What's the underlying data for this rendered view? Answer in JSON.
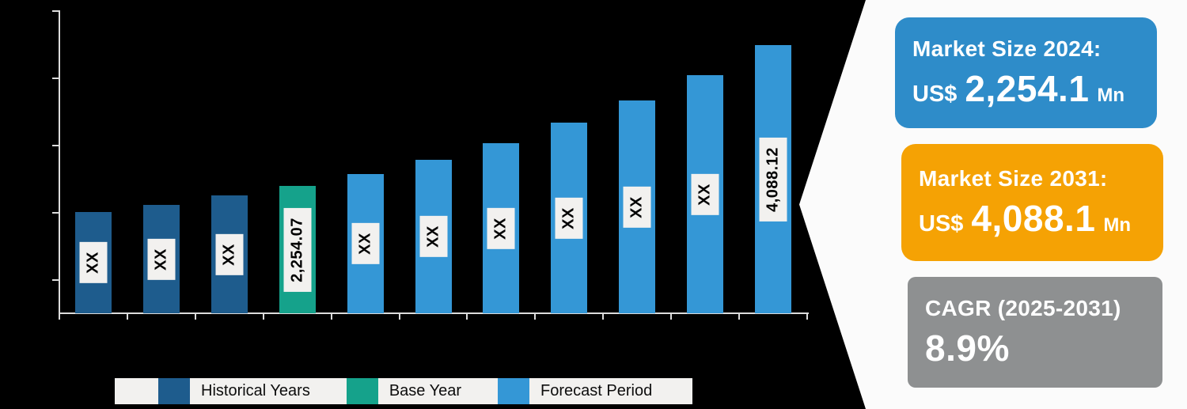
{
  "infographic": {
    "background_color": "#000000",
    "panel_color": "#fbfbfb"
  },
  "chart_data": {
    "type": "bar",
    "title": "",
    "xlabel": "",
    "ylabel": "",
    "x_tick_labels": [],
    "y_tick_labels": [],
    "grid": false,
    "legend_position": "bottom",
    "bar_value_labels_rotated": true,
    "legend": [
      {
        "label": "Historical Years",
        "color": "#1e5c8d"
      },
      {
        "label": "Base Year",
        "color": "#15a28b"
      },
      {
        "label": "Forecast Period",
        "color": "#3497d6"
      }
    ],
    "bars": [
      {
        "group": "Historical Years",
        "label": "XX",
        "height_frac": 0.336
      },
      {
        "group": "Historical Years",
        "label": "XX",
        "height_frac": 0.36
      },
      {
        "group": "Historical Years",
        "label": "XX",
        "height_frac": 0.392
      },
      {
        "group": "Base Year",
        "label": "2,254.07",
        "height_frac": 0.423
      },
      {
        "group": "Forecast Period",
        "label": "XX",
        "height_frac": 0.462
      },
      {
        "group": "Forecast Period",
        "label": "XX",
        "height_frac": 0.509
      },
      {
        "group": "Forecast Period",
        "label": "XX",
        "height_frac": 0.565
      },
      {
        "group": "Forecast Period",
        "label": "XX",
        "height_frac": 0.633
      },
      {
        "group": "Forecast Period",
        "label": "XX",
        "height_frac": 0.706
      },
      {
        "group": "Forecast Period",
        "label": "XX",
        "height_frac": 0.79
      },
      {
        "group": "Forecast Period",
        "label": "4,088.12",
        "height_frac": 0.89
      }
    ],
    "labeled_values": {
      "base_year": 2254.07,
      "final_forecast_year": 4088.12
    }
  },
  "cards": {
    "market_2024": {
      "title": "Market Size 2024:",
      "currency": "US$",
      "value": "2,254.1",
      "unit": "Mn",
      "color": "#2e8cc9"
    },
    "market_2031": {
      "title": "Market Size 2031:",
      "currency": "US$",
      "value": "4,088.1",
      "unit": "Mn",
      "color": "#f5a204"
    },
    "cagr": {
      "title": "CAGR (2025-2031)",
      "value": "8.9%",
      "color": "#8e9091"
    }
  }
}
